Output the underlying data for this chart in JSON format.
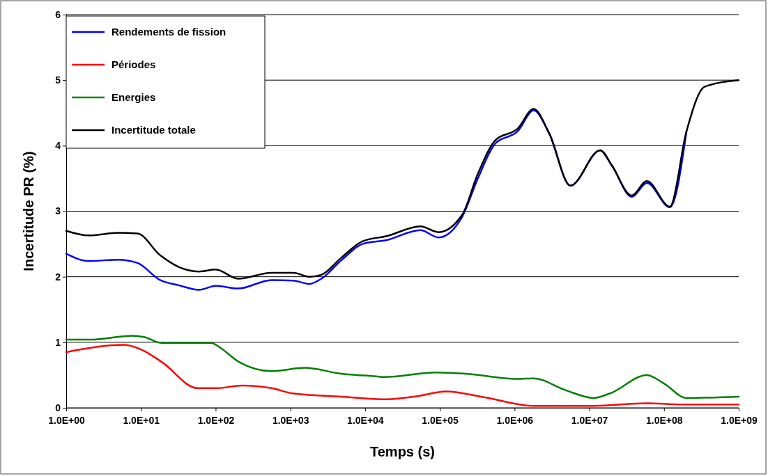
{
  "chart_data": {
    "type": "line",
    "xlabel": "Temps (s)",
    "ylabel": "Incertitude PR (%)",
    "log": "x",
    "grid": "y",
    "legend": "top left",
    "line_style": "solid",
    "marker": "none",
    "xlim": [
      1,
      1000000000
    ],
    "xticks": [
      {
        "value": 1,
        "label": "1.0E+00"
      },
      {
        "value": 10,
        "label": "1.0E+01"
      },
      {
        "value": 100,
        "label": "1.0E+02"
      },
      {
        "value": 1000,
        "label": "1.0E+03"
      },
      {
        "value": 10000,
        "label": "1.0E+04"
      },
      {
        "value": 100000,
        "label": "1.0E+05"
      },
      {
        "value": 1000000,
        "label": "1.0E+06"
      },
      {
        "value": 10000000,
        "label": "1.0E+07"
      },
      {
        "value": 100000000,
        "label": "1.0E+08"
      },
      {
        "value": 1000000000,
        "label": "1.0E+09"
      }
    ],
    "ylim": [
      0,
      6
    ],
    "yticks": [
      0,
      1,
      2,
      3,
      4,
      5,
      6
    ],
    "series": [
      {
        "name": "Rendements de fission",
        "color": "#0000ff",
        "x": [
          1,
          2,
          5,
          9,
          18,
          32,
          60,
          100,
          200,
          560,
          1100,
          1800,
          2600,
          4800,
          9200,
          19500,
          55000,
          96000,
          200000,
          320000,
          550000,
          1100000,
          1800000,
          2900000,
          5600000,
          14000000,
          20000000,
          37000000,
          59000000,
          120000000,
          200000000
        ],
        "values": [
          2.35,
          2.24,
          2.26,
          2.21,
          1.95,
          1.87,
          1.8,
          1.86,
          1.82,
          1.95,
          1.94,
          1.89,
          1.97,
          2.25,
          2.5,
          2.56,
          2.71,
          2.6,
          2.92,
          3.49,
          4.03,
          4.22,
          4.54,
          4.19,
          3.39,
          3.93,
          3.7,
          3.22,
          3.43,
          3.06,
          4.22
        ]
      },
      {
        "name": "Périodes",
        "color": "#ff0000",
        "x": [
          1,
          6,
          10,
          19,
          57,
          105,
          225,
          560,
          1070,
          4800,
          19500,
          52000,
          120000,
          400000,
          1800000,
          11400000,
          59000000,
          170000000,
          1000000000
        ],
        "values": [
          0.85,
          0.96,
          0.89,
          0.7,
          0.3,
          0.3,
          0.34,
          0.3,
          0.22,
          0.17,
          0.13,
          0.18,
          0.25,
          0.16,
          0.03,
          0.03,
          0.07,
          0.05,
          0.05
        ]
      },
      {
        "name": "Energies",
        "color": "#008000",
        "x": [
          1,
          2.1,
          7.7,
          11,
          19,
          87,
          117,
          205,
          560,
          1560,
          4800,
          14000,
          18000,
          90000,
          220000,
          1100000,
          1800000,
          4800000,
          11400000,
          19000000,
          59000000,
          100000000,
          200000000,
          1000000000
        ],
        "values": [
          1.04,
          1.04,
          1.1,
          1.08,
          0.99,
          0.99,
          0.91,
          0.7,
          0.56,
          0.61,
          0.52,
          0.48,
          0.47,
          0.54,
          0.52,
          0.44,
          0.45,
          0.27,
          0.15,
          0.22,
          0.5,
          0.37,
          0.15,
          0.17
        ]
      },
      {
        "name": "Incertitude totale",
        "color": "#000000",
        "x": [
          1,
          2,
          5,
          9,
          18,
          32,
          60,
          100,
          200,
          560,
          1100,
          1800,
          2600,
          4800,
          9200,
          19500,
          55000,
          96000,
          200000,
          320000,
          550000,
          1100000,
          1800000,
          2900000,
          5600000,
          14000000,
          20000000,
          37000000,
          59000000,
          120000000,
          200000000,
          350000000,
          1000000000
        ],
        "values": [
          2.7,
          2.63,
          2.67,
          2.66,
          2.33,
          2.15,
          2.08,
          2.11,
          1.97,
          2.06,
          2.06,
          2.0,
          2.03,
          2.29,
          2.54,
          2.62,
          2.77,
          2.68,
          2.95,
          3.56,
          4.08,
          4.26,
          4.56,
          4.19,
          3.39,
          3.93,
          3.7,
          3.24,
          3.46,
          3.07,
          4.22,
          4.9,
          5.0
        ]
      }
    ]
  }
}
